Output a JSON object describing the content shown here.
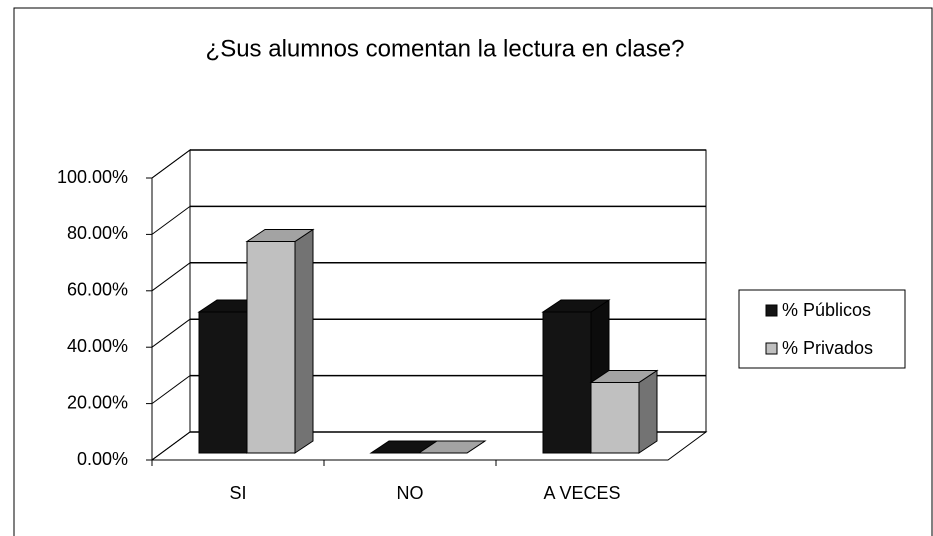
{
  "chart_data": {
    "type": "bar3d",
    "title": "¿Sus alumnos comentan la lectura en clase?",
    "categories": [
      "SI",
      "NO",
      "A VECES"
    ],
    "series": [
      {
        "name": "% Públicos",
        "color": "#141414",
        "values": [
          50,
          0,
          50
        ]
      },
      {
        "name": "% Privados",
        "color": "#c0c0c0",
        "values": [
          75,
          0,
          25
        ]
      }
    ],
    "ylim": [
      0,
      100
    ],
    "yticks": [
      {
        "value": 0,
        "label": "0.00%"
      },
      {
        "value": 20,
        "label": "20.00%"
      },
      {
        "value": 40,
        "label": "40.00%"
      },
      {
        "value": 60,
        "label": "60.00%"
      },
      {
        "value": 80,
        "label": "80.00%"
      },
      {
        "value": 100,
        "label": "100.00%"
      }
    ],
    "grid": true,
    "legend": "right"
  }
}
